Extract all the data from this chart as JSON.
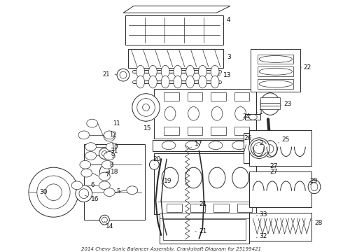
{
  "title": "2014 Chevy Sonic Balancer Assembly, Crankshaft Diagram for 25199421",
  "bg_color": "#ffffff",
  "line_color": "#2a2a2a",
  "label_color": "#111111",
  "fig_width": 4.9,
  "fig_height": 3.6,
  "dpi": 100
}
